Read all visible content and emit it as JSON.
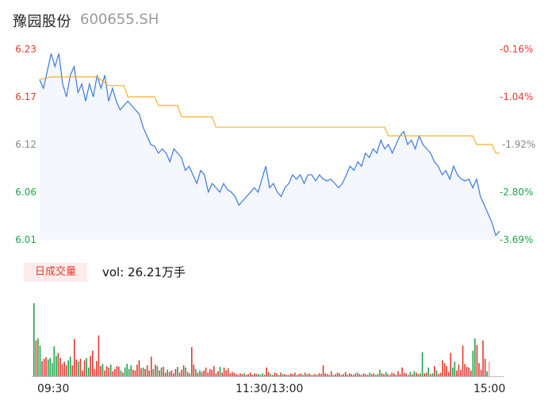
{
  "stock": {
    "name": "豫园股份",
    "code": "600655.SH"
  },
  "price_axis": {
    "ticks": [
      "6.23",
      "6.17",
      "6.12",
      "6.06",
      "6.01"
    ]
  },
  "pct_axis": {
    "ticks": [
      "-0.16%",
      "-1.04%",
      "-1.92%",
      "-2.80%",
      "-3.69%"
    ]
  },
  "volume_panel": {
    "badge": "日成交量",
    "vol_text": "vol: 26.21万手"
  },
  "x_axis": {
    "labels": [
      "09:30",
      "11:30/13:00",
      "15:00"
    ]
  },
  "colors": {
    "up": "#e23a31",
    "down": "#1aa64a",
    "neutral": "#888888",
    "price_line": "#3a78e0",
    "avg_line": "#f0b232",
    "area": "#f4f7fd"
  },
  "chart_data": [
    {
      "type": "line",
      "x_range": [
        0,
        240
      ],
      "ylim": [
        6.01,
        6.23
      ],
      "series": [
        {
          "points": [
            [
              0,
              6.195
            ],
            [
              2,
              6.185
            ],
            [
              4,
              6.205
            ],
            [
              6,
              6.225
            ],
            [
              8,
              6.21
            ],
            [
              10,
              6.225
            ],
            [
              12,
              6.19
            ],
            [
              14,
              6.175
            ],
            [
              16,
              6.2
            ],
            [
              18,
              6.21
            ],
            [
              20,
              6.18
            ],
            [
              22,
              6.19
            ],
            [
              24,
              6.17
            ],
            [
              26,
              6.19
            ],
            [
              28,
              6.175
            ],
            [
              30,
              6.2
            ],
            [
              32,
              6.185
            ],
            [
              34,
              6.2
            ],
            [
              36,
              6.17
            ],
            [
              38,
              6.185
            ],
            [
              40,
              6.17
            ],
            [
              42,
              6.16
            ],
            [
              44,
              6.165
            ],
            [
              46,
              6.17
            ],
            [
              48,
              6.165
            ],
            [
              50,
              6.16
            ],
            [
              52,
              6.155
            ],
            [
              54,
              6.14
            ],
            [
              56,
              6.13
            ],
            [
              58,
              6.12
            ],
            [
              60,
              6.118
            ],
            [
              62,
              6.11
            ],
            [
              64,
              6.115
            ],
            [
              66,
              6.11
            ],
            [
              68,
              6.1
            ],
            [
              70,
              6.115
            ],
            [
              72,
              6.11
            ],
            [
              74,
              6.105
            ],
            [
              76,
              6.09
            ],
            [
              78,
              6.095
            ],
            [
              80,
              6.085
            ],
            [
              82,
              6.075
            ],
            [
              84,
              6.09
            ],
            [
              86,
              6.085
            ],
            [
              88,
              6.065
            ],
            [
              90,
              6.075
            ],
            [
              92,
              6.07
            ],
            [
              94,
              6.065
            ],
            [
              96,
              6.075
            ],
            [
              98,
              6.068
            ],
            [
              100,
              6.065
            ],
            [
              102,
              6.06
            ],
            [
              104,
              6.05
            ],
            [
              106,
              6.055
            ],
            [
              108,
              6.06
            ],
            [
              110,
              6.065
            ],
            [
              112,
              6.07
            ],
            [
              114,
              6.065
            ],
            [
              116,
              6.08
            ],
            [
              118,
              6.095
            ],
            [
              120,
              6.07
            ],
            [
              122,
              6.075
            ],
            [
              124,
              6.065
            ],
            [
              126,
              6.06
            ],
            [
              128,
              6.07
            ],
            [
              130,
              6.075
            ],
            [
              132,
              6.085
            ],
            [
              134,
              6.08
            ],
            [
              136,
              6.085
            ],
            [
              138,
              6.075
            ],
            [
              140,
              6.085
            ],
            [
              142,
              6.085
            ],
            [
              144,
              6.078
            ],
            [
              146,
              6.085
            ],
            [
              148,
              6.08
            ],
            [
              150,
              6.078
            ],
            [
              152,
              6.08
            ],
            [
              154,
              6.075
            ],
            [
              156,
              6.07
            ],
            [
              158,
              6.075
            ],
            [
              160,
              6.085
            ],
            [
              162,
              6.095
            ],
            [
              164,
              6.09
            ],
            [
              166,
              6.1
            ],
            [
              168,
              6.095
            ],
            [
              170,
              6.11
            ],
            [
              172,
              6.105
            ],
            [
              174,
              6.115
            ],
            [
              176,
              6.11
            ],
            [
              178,
              6.125
            ],
            [
              180,
              6.115
            ],
            [
              182,
              6.12
            ],
            [
              184,
              6.11
            ],
            [
              186,
              6.12
            ],
            [
              188,
              6.13
            ],
            [
              190,
              6.135
            ],
            [
              192,
              6.12
            ],
            [
              194,
              6.125
            ],
            [
              196,
              6.115
            ],
            [
              198,
              6.13
            ],
            [
              200,
              6.12
            ],
            [
              202,
              6.115
            ],
            [
              204,
              6.11
            ],
            [
              206,
              6.1
            ],
            [
              208,
              6.095
            ],
            [
              210,
              6.085
            ],
            [
              212,
              6.09
            ],
            [
              214,
              6.08
            ],
            [
              216,
              6.095
            ],
            [
              218,
              6.085
            ],
            [
              220,
              6.08
            ],
            [
              222,
              6.078
            ],
            [
              224,
              6.08
            ],
            [
              226,
              6.07
            ],
            [
              228,
              6.08
            ],
            [
              230,
              6.06
            ],
            [
              232,
              6.05
            ],
            [
              234,
              6.04
            ],
            [
              236,
              6.03
            ],
            [
              238,
              6.015
            ],
            [
              240,
              6.02
            ]
          ]
        },
        {
          "points": [
            [
              0,
              6.195
            ],
            [
              6,
              6.198
            ],
            [
              30,
              6.198
            ],
            [
              36,
              6.188
            ],
            [
              44,
              6.188
            ],
            [
              46,
              6.175
            ],
            [
              60,
              6.175
            ],
            [
              62,
              6.165
            ],
            [
              72,
              6.165
            ],
            [
              74,
              6.152
            ],
            [
              90,
              6.152
            ],
            [
              92,
              6.14
            ],
            [
              180,
              6.14
            ],
            [
              182,
              6.13
            ],
            [
              226,
              6.13
            ],
            [
              228,
              6.12
            ],
            [
              236,
              6.12
            ],
            [
              238,
              6.11
            ],
            [
              240,
              6.11
            ]
          ]
        }
      ]
    },
    {
      "type": "bar",
      "x_range": [
        0,
        240
      ],
      "ylim": [
        0,
        100
      ],
      "colors": [
        "#e23a31",
        "#1aa64a",
        "#888888"
      ],
      "series": [
        {
          "values": [
            100,
            49,
            52,
            42,
            21,
            24,
            26,
            23,
            25,
            18,
            41,
            28,
            32,
            25,
            17,
            20,
            15,
            22,
            27,
            15,
            51,
            23,
            20,
            24,
            8,
            22,
            25,
            12,
            28,
            35,
            10,
            21,
            56,
            14,
            17,
            8,
            14,
            12,
            16,
            7,
            10,
            14,
            13,
            8,
            5,
            12,
            17,
            10,
            15,
            9,
            8,
            16,
            22,
            11,
            12,
            10,
            15,
            8,
            27,
            10,
            16,
            14,
            8,
            12,
            13,
            5,
            9,
            6,
            8,
            4,
            10,
            13,
            5,
            9,
            15,
            12,
            6,
            4,
            40,
            16,
            10,
            5,
            8,
            6,
            8,
            12,
            5,
            10,
            9,
            14,
            4,
            7,
            13,
            5,
            12,
            8,
            11,
            4,
            6,
            5,
            3,
            2,
            4,
            3,
            4,
            2,
            3,
            5,
            2,
            4,
            3,
            3,
            2,
            4,
            2,
            12,
            6,
            3,
            2,
            5,
            4,
            2,
            5,
            3,
            3,
            2,
            2,
            4,
            3,
            5,
            2,
            3,
            4,
            2,
            5,
            3,
            4,
            2,
            2,
            3,
            2,
            4,
            3,
            15,
            4,
            3,
            2,
            7,
            2,
            3,
            5,
            4,
            2,
            3,
            6,
            2,
            4,
            3,
            2,
            4,
            5,
            3,
            2,
            4,
            3,
            2,
            5,
            3,
            4,
            2,
            3,
            9,
            4,
            3,
            6,
            3,
            2,
            5,
            4,
            2,
            7,
            3,
            12,
            5,
            4,
            2,
            6,
            3,
            7,
            5,
            3,
            4,
            33,
            4,
            5,
            12,
            3,
            4,
            14,
            8,
            3,
            5,
            22,
            18,
            14,
            6,
            32,
            12,
            20,
            8,
            16,
            9,
            42,
            17,
            13,
            12,
            8,
            35,
            52,
            43,
            18,
            9,
            49,
            24,
            7,
            20
          ]
        }
      ]
    }
  ]
}
